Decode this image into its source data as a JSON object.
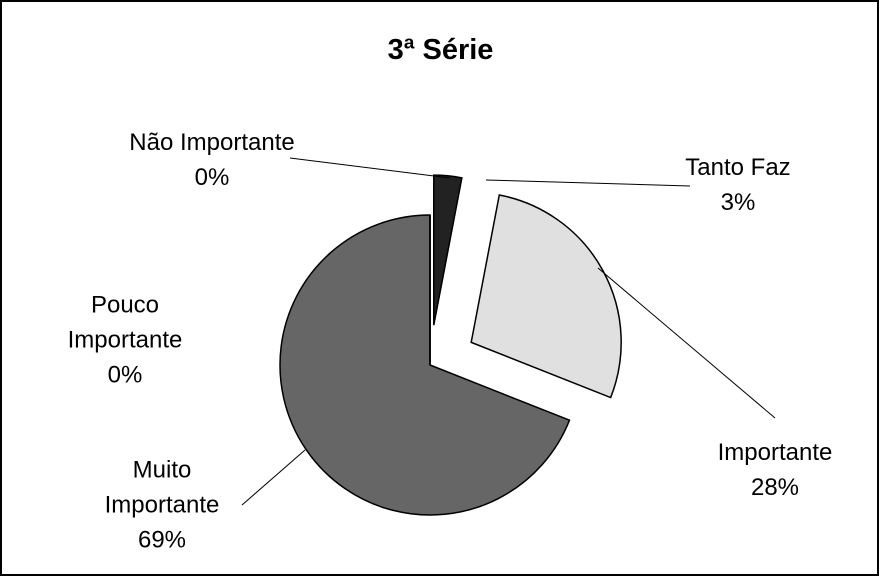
{
  "chart_data": {
    "type": "pie",
    "title": "3ª Série",
    "categories": [
      "Tanto Faz",
      "Importante",
      "Muito Importante",
      "Pouco Importante",
      "Não Importante"
    ],
    "values": [
      3,
      28,
      69,
      0,
      0
    ],
    "value_labels": [
      "3%",
      "28%",
      "69%",
      "0%",
      "0%"
    ],
    "colors": [
      "#222222",
      "#e0e0e0",
      "#666666",
      "#999999",
      "#bbbbbb"
    ]
  }
}
